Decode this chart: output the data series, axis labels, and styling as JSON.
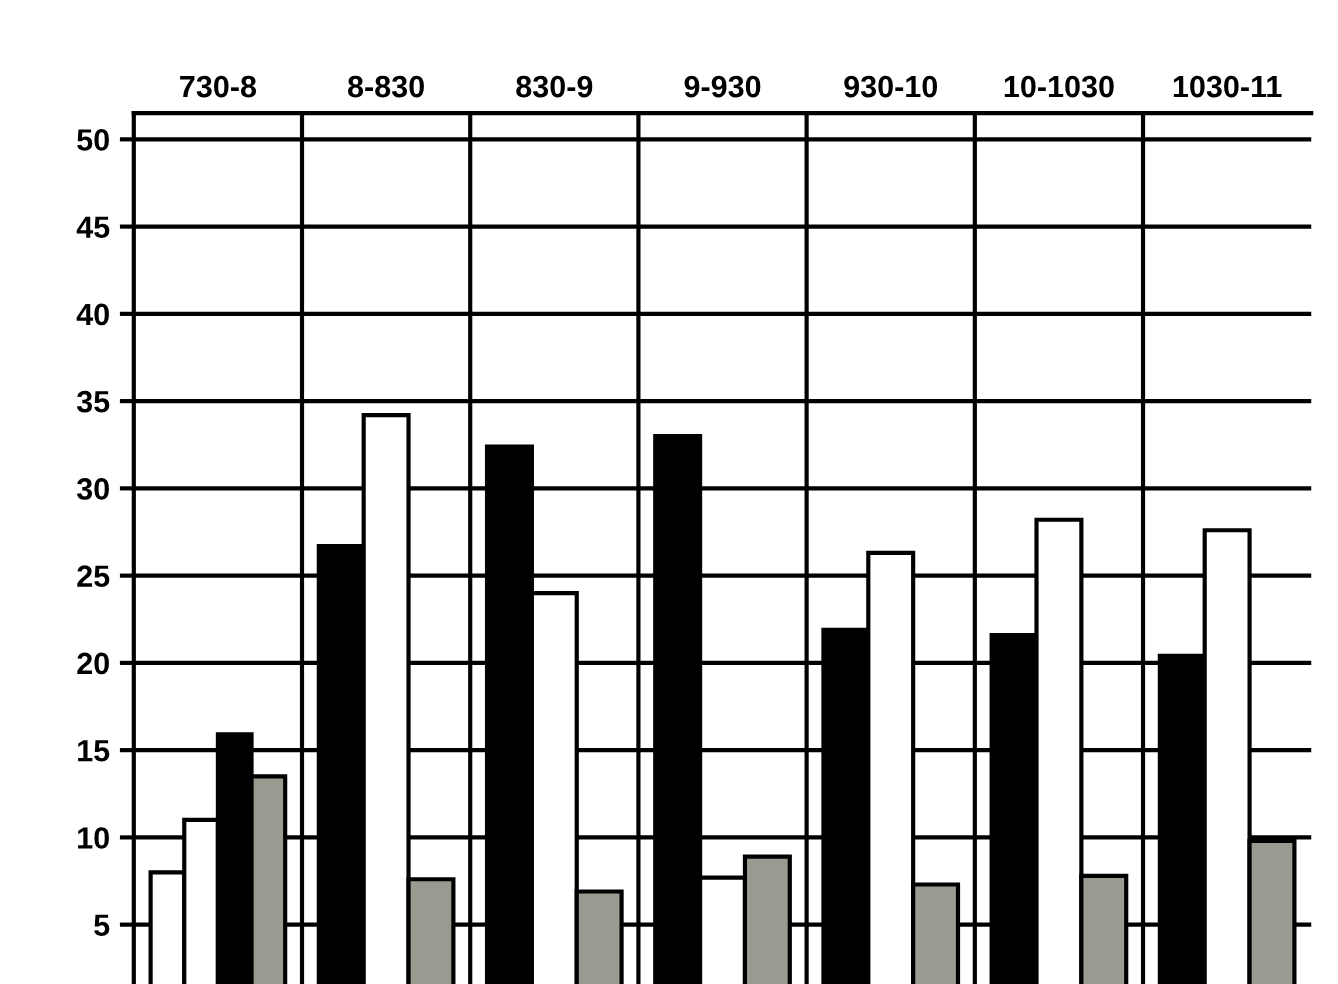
{
  "chart_data": {
    "type": "bar",
    "categories": [
      "730-8",
      "8-830",
      "830-9",
      "9-930",
      "930-10",
      "10-1030",
      "1030-11"
    ],
    "series": [
      {
        "color": "#ffffff",
        "values": [
          8.0,
          null,
          null,
          null,
          null,
          null,
          null
        ]
      },
      {
        "color": "#ffffff",
        "values": [
          11.0,
          null,
          null,
          null,
          null,
          null,
          null
        ]
      },
      {
        "color": "#000000",
        "values": [
          15.9,
          26.7,
          32.4,
          33.0,
          21.9,
          21.6,
          20.4
        ]
      },
      {
        "color": "#ffffff",
        "values": [
          null,
          34.2,
          24.0,
          7.7,
          26.3,
          28.2,
          27.6
        ]
      },
      {
        "color": "#9a9a90",
        "values": [
          13.5,
          7.6,
          6.9,
          8.9,
          7.3,
          7.8,
          9.8
        ]
      }
    ],
    "ylim": [
      1.6,
      51.5
    ],
    "yticks": [
      5,
      10,
      15,
      20,
      25,
      30,
      35,
      40,
      45,
      50
    ],
    "grid": true,
    "legend": false
  }
}
